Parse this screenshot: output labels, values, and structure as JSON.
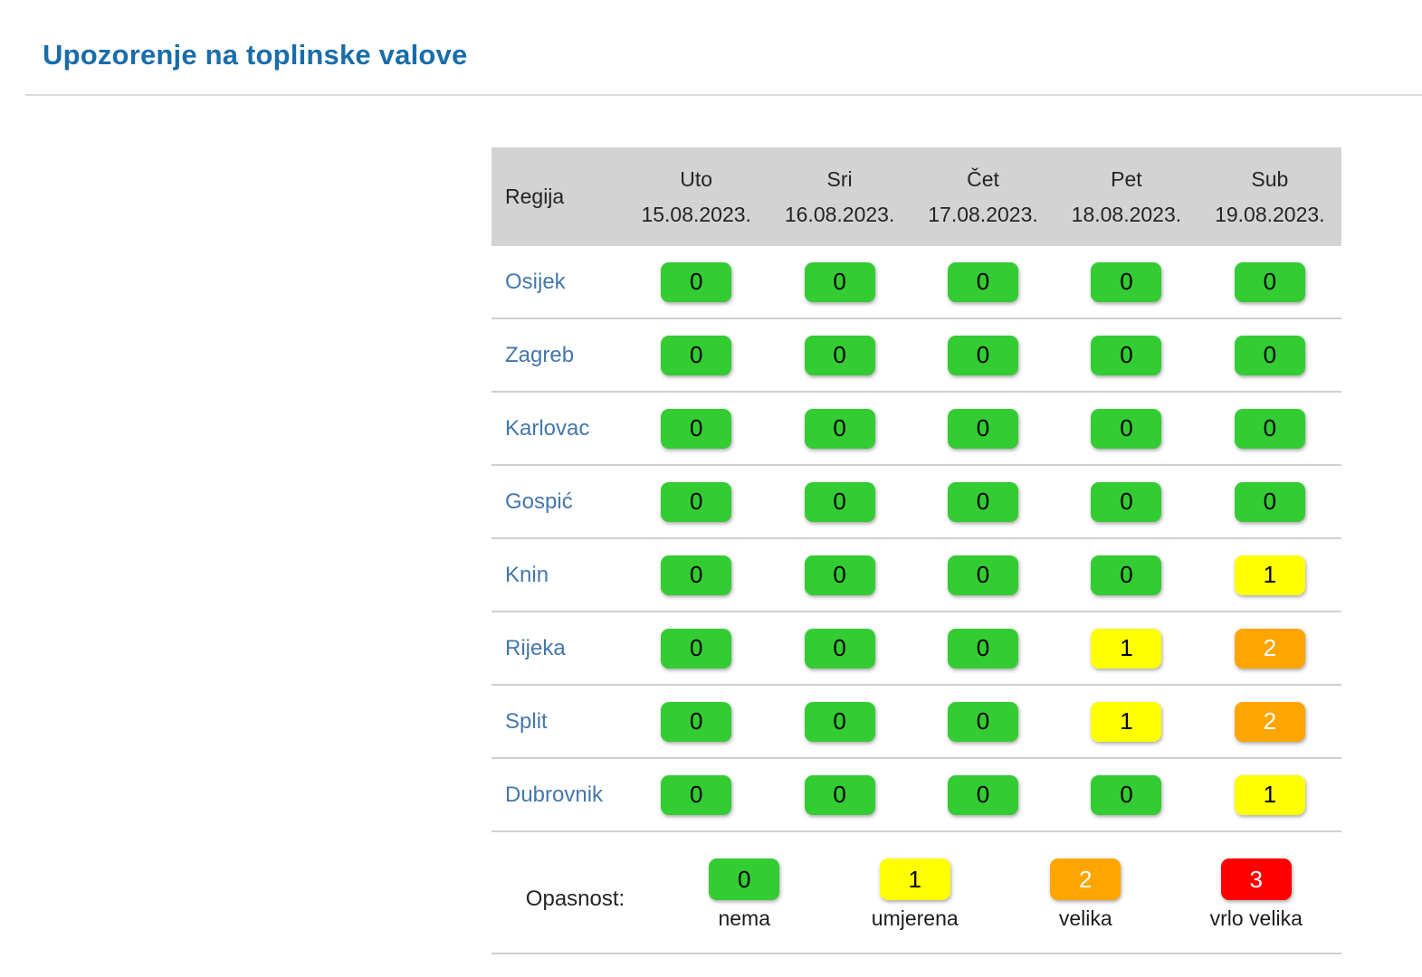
{
  "page": {
    "title": "Upozorenje na toplinske valove"
  },
  "colors": {
    "level_0": "#33cc33",
    "level_1": "#ffff00",
    "level_2": "#ffa500",
    "level_3": "#ff0000",
    "title_blue": "#1a6da8",
    "region_link": "#4477aa",
    "header_bg": "#d3d3d3",
    "separator": "#ccd1d6",
    "divider": "#d8dbdf"
  },
  "table": {
    "region_header": "Regija",
    "columns": [
      {
        "day": "Uto",
        "date": "15.08.2023."
      },
      {
        "day": "Sri",
        "date": "16.08.2023."
      },
      {
        "day": "Čet",
        "date": "17.08.2023."
      },
      {
        "day": "Pet",
        "date": "18.08.2023."
      },
      {
        "day": "Sub",
        "date": "19.08.2023."
      }
    ],
    "rows": [
      {
        "region": "Osijek",
        "values": [
          0,
          0,
          0,
          0,
          0
        ]
      },
      {
        "region": "Zagreb",
        "values": [
          0,
          0,
          0,
          0,
          0
        ]
      },
      {
        "region": "Karlovac",
        "values": [
          0,
          0,
          0,
          0,
          0
        ]
      },
      {
        "region": "Gospić",
        "values": [
          0,
          0,
          0,
          0,
          0
        ]
      },
      {
        "region": "Knin",
        "values": [
          0,
          0,
          0,
          0,
          1
        ]
      },
      {
        "region": "Rijeka",
        "values": [
          0,
          0,
          0,
          1,
          2
        ]
      },
      {
        "region": "Split",
        "values": [
          0,
          0,
          0,
          1,
          2
        ]
      },
      {
        "region": "Dubrovnik",
        "values": [
          0,
          0,
          0,
          0,
          1
        ]
      }
    ]
  },
  "legend": {
    "label": "Opasnost:",
    "items": [
      {
        "value": 0,
        "label": "nema"
      },
      {
        "value": 1,
        "label": "umjerena"
      },
      {
        "value": 2,
        "label": "velika"
      },
      {
        "value": 3,
        "label": "vrlo velika"
      }
    ]
  },
  "chart_data": {
    "type": "heatmap",
    "title": "Upozorenje na toplinske valove",
    "x": [
      "Uto 15.08.2023.",
      "Sri 16.08.2023.",
      "Čet 17.08.2023.",
      "Pet 18.08.2023.",
      "Sub 19.08.2023."
    ],
    "y": [
      "Osijek",
      "Zagreb",
      "Karlovac",
      "Gospić",
      "Knin",
      "Rijeka",
      "Split",
      "Dubrovnik"
    ],
    "values": [
      [
        0,
        0,
        0,
        0,
        0
      ],
      [
        0,
        0,
        0,
        0,
        0
      ],
      [
        0,
        0,
        0,
        0,
        0
      ],
      [
        0,
        0,
        0,
        0,
        0
      ],
      [
        0,
        0,
        0,
        0,
        1
      ],
      [
        0,
        0,
        0,
        1,
        2
      ],
      [
        0,
        0,
        0,
        1,
        2
      ],
      [
        0,
        0,
        0,
        0,
        1
      ]
    ],
    "scale": [
      {
        "value": 0,
        "label": "nema",
        "color": "#33cc33"
      },
      {
        "value": 1,
        "label": "umjerena",
        "color": "#ffff00"
      },
      {
        "value": 2,
        "label": "velika",
        "color": "#ffa500"
      },
      {
        "value": 3,
        "label": "vrlo velika",
        "color": "#ff0000"
      }
    ],
    "legend_position": "bottom"
  }
}
